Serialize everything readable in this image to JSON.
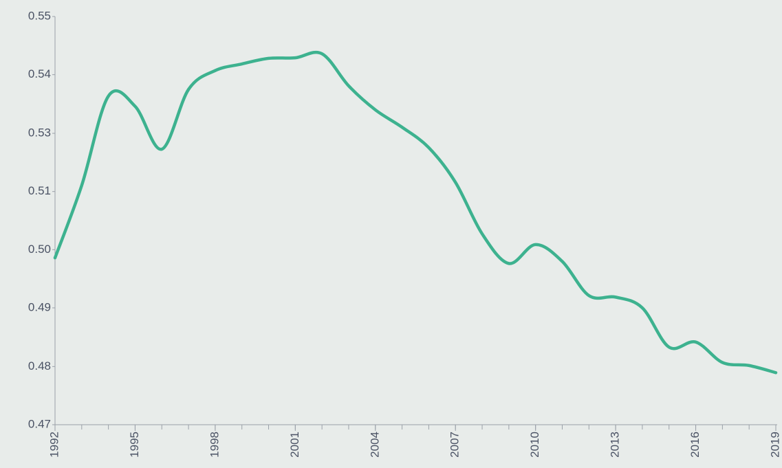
{
  "chart_data": {
    "type": "line",
    "x": [
      1992,
      1993,
      1994,
      1995,
      1996,
      1997,
      1998,
      1999,
      2000,
      2001,
      2002,
      2003,
      2004,
      2005,
      2006,
      2007,
      2008,
      2009,
      2010,
      2011,
      2012,
      2013,
      2014,
      2015,
      2016,
      2017,
      2018,
      2019
    ],
    "series": [
      {
        "color": "#3db28f",
        "values": [
          0.5027,
          0.5169,
          0.5344,
          0.5324,
          0.524,
          0.5357,
          0.5394,
          0.5407,
          0.5418,
          0.5419,
          0.5427,
          0.5364,
          0.5317,
          0.5283,
          0.5243,
          0.5175,
          0.5074,
          0.5016,
          0.5053,
          0.502,
          0.4953,
          0.495,
          0.4929,
          0.4852,
          0.4862,
          0.4822,
          0.4816,
          0.4802
        ]
      }
    ],
    "xlim": [
      1992,
      2019
    ],
    "xticks": [
      1992,
      1995,
      1998,
      2001,
      2004,
      2007,
      2010,
      2013,
      2016,
      2019
    ],
    "ylim": [
      0.47,
      0.55
    ],
    "yticks": [
      {
        "value": 0.47,
        "label": "0.47"
      },
      {
        "value": 0.4814,
        "label": "0.48"
      },
      {
        "value": 0.4929,
        "label": "0.49"
      },
      {
        "value": 0.5043,
        "label": "0.50"
      },
      {
        "value": 0.5157,
        "label": "0.51"
      },
      {
        "value": 0.5271,
        "label": "0.53"
      },
      {
        "value": 0.5386,
        "label": "0.54"
      },
      {
        "value": 0.55,
        "label": "0.55"
      }
    ],
    "grid": false
  }
}
